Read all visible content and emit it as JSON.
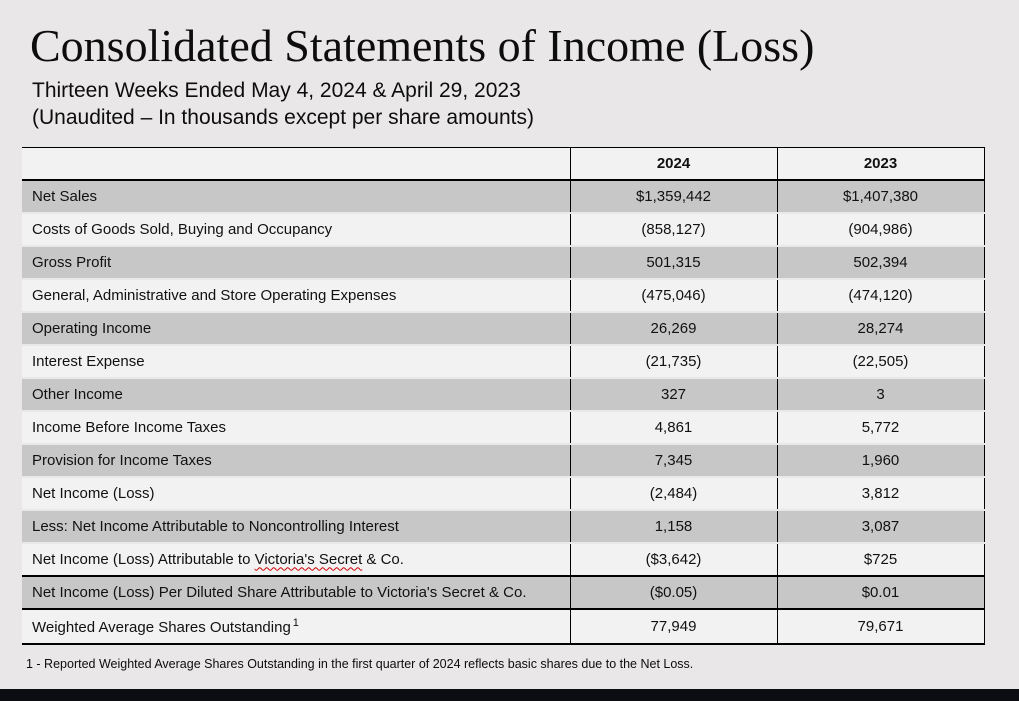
{
  "page": {
    "title": "Consolidated Statements of Income (Loss)",
    "subtitle_line1": "Thirteen Weeks Ended May 4, 2024 & April 29, 2023",
    "subtitle_line2": "(Unaudited – In thousands except per share amounts)",
    "footnote": "1 - Reported Weighted Average Shares Outstanding in the first quarter of 2024 reflects basic shares due to the Net Loss."
  },
  "table": {
    "headers": {
      "label": "",
      "col2024": "2024",
      "col2023": "2023"
    },
    "rows": [
      {
        "label": "Net Sales",
        "v2024": "$1,359,442",
        "v2023": "$1,407,380"
      },
      {
        "label": "Costs of Goods Sold, Buying and Occupancy",
        "v2024": "(858,127)",
        "v2023": "(904,986)"
      },
      {
        "label": "Gross Profit",
        "v2024": "501,315",
        "v2023": "502,394"
      },
      {
        "label": "General, Administrative and Store Operating Expenses",
        "v2024": "(475,046)",
        "v2023": "(474,120)"
      },
      {
        "label": "Operating Income",
        "v2024": "26,269",
        "v2023": "28,274"
      },
      {
        "label": "Interest Expense",
        "v2024": "(21,735)",
        "v2023": "(22,505)"
      },
      {
        "label": "Other Income",
        "v2024": "327",
        "v2023": "3"
      },
      {
        "label": "Income Before Income Taxes",
        "v2024": "4,861",
        "v2023": "5,772"
      },
      {
        "label": "Provision for Income Taxes",
        "v2024": "7,345",
        "v2023": "1,960"
      },
      {
        "label": "Net Income (Loss)",
        "v2024": "(2,484)",
        "v2023": "3,812"
      },
      {
        "label": "Less: Net Income Attributable to Noncontrolling Interest",
        "v2024": "1,158",
        "v2023": "3,087"
      },
      {
        "label_pre": "Net Income (Loss) Attributable to ",
        "label_vs": "Victoria's Secret",
        "label_post": " & Co.",
        "v2024": "($3,642)",
        "v2023": "$725"
      },
      {
        "label": "Net Income (Loss) Per Diluted Share Attributable to Victoria's Secret & Co.",
        "v2024": "($0.05)",
        "v2023": "$0.01"
      },
      {
        "label": "Weighted Average Shares Outstanding",
        "footnote_marker": "1",
        "v2024": "77,949",
        "v2023": "79,671"
      }
    ]
  },
  "colors": {
    "page_bg": "#e9e7e8",
    "row_gray": "#c8c7c8",
    "row_light": "#f3f2f3",
    "table_border": "#000000",
    "spellcheck_underline": "#cc0000",
    "footer_bar": "#0c0c13"
  }
}
